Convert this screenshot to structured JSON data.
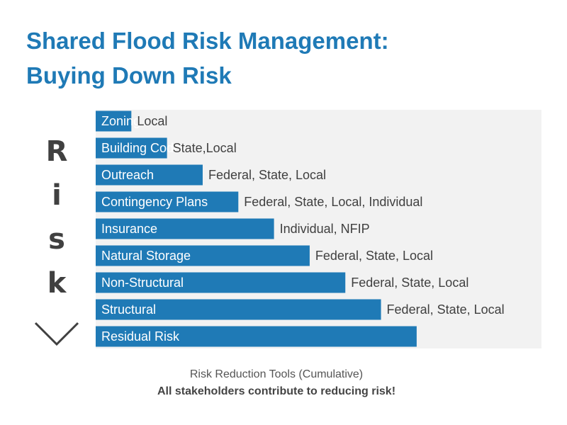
{
  "title": {
    "line1": "Shared Flood Risk Management:",
    "line2": "Buying Down Risk"
  },
  "risk_axis": {
    "letters": [
      "R",
      "i",
      "s",
      "k"
    ],
    "arrow_icon": "chevron-down-icon"
  },
  "chart_data": {
    "type": "bar",
    "orientation": "horizontal",
    "categories": [
      "Zoning",
      "Building Codes",
      "Outreach",
      "Contingency Plans",
      "Insurance",
      "Natural Storage",
      "Non-Structural",
      "Structural",
      "Residual Risk"
    ],
    "values": [
      1,
      2,
      3,
      4,
      5,
      6,
      7,
      8,
      9
    ],
    "annotations": [
      "Local",
      "State,Local",
      "Federal, State, Local",
      "Federal, State, Local, Individual",
      "Individual, NFIP",
      "Federal, State, Local",
      "Federal, State, Local",
      "Federal, State, Local",
      ""
    ],
    "xlabel": "Risk Reduction Tools (Cumulative)",
    "ylabel": "Risk",
    "xlim": [
      0,
      12.5
    ],
    "bar_color": "#1f7ab6",
    "background_color": "#f2f2f2"
  },
  "footer": {
    "line1": "Risk Reduction Tools (Cumulative)",
    "line2": "All stakeholders contribute to reducing risk!"
  }
}
